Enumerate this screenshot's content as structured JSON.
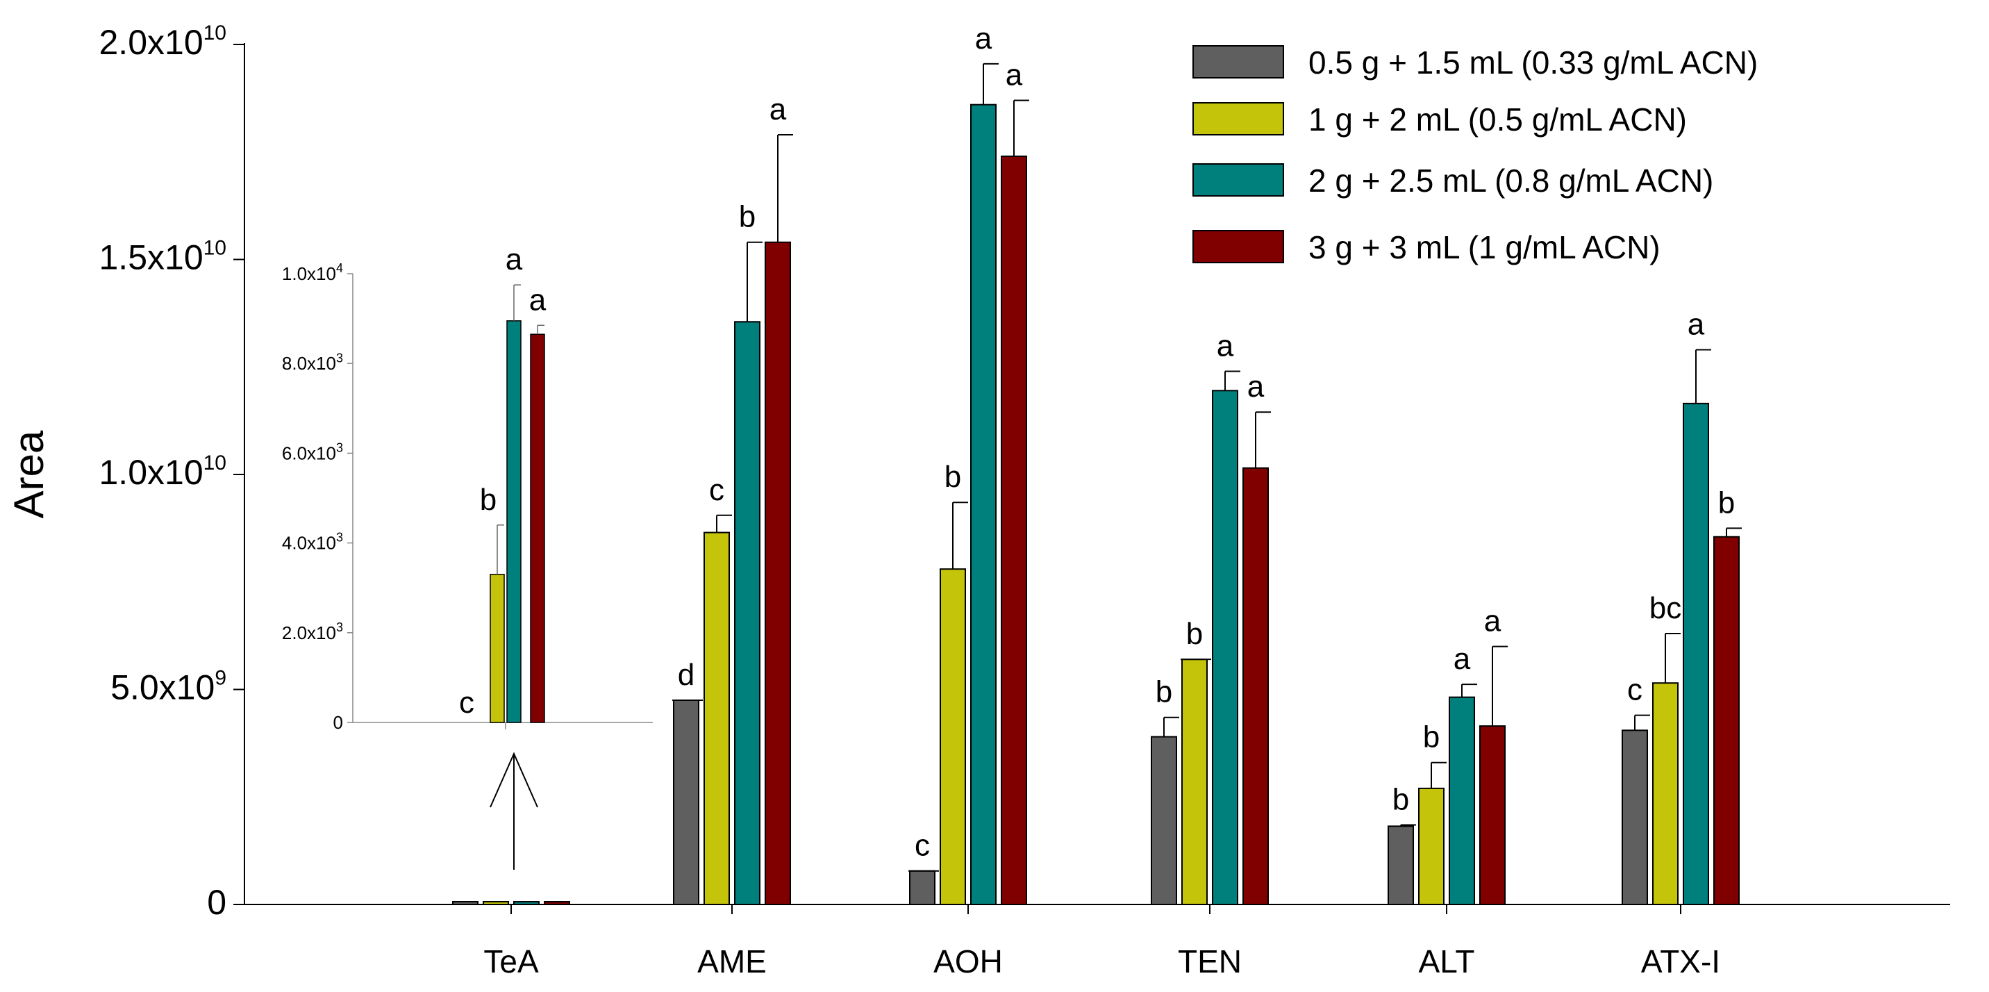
{
  "chart_data": {
    "type": "bar",
    "ylabel": "Area",
    "xlabel": "",
    "ylim": [
      0,
      20000000000
    ],
    "y_ticks": [
      {
        "value": 0,
        "base": "0",
        "exp": ""
      },
      {
        "value": 5000000000,
        "base": "5.0x10",
        "exp": "9"
      },
      {
        "value": 10000000000,
        "base": "1.0x10",
        "exp": "10"
      },
      {
        "value": 15000000000,
        "base": "1.5x10",
        "exp": "10"
      },
      {
        "value": 20000000000,
        "base": "2.0x10",
        "exp": "10"
      }
    ],
    "categories": [
      "TeA",
      "AME",
      "AOH",
      "TEN",
      "ALT",
      "ATX-I"
    ],
    "series": [
      {
        "name": "0.5 g + 1.5 mL (0.33 g/mL ACN)",
        "color": "#5f5f5f",
        "values": [
          0,
          4750000000,
          780000000,
          3900000000,
          1820000000,
          4050000000
        ],
        "errors": [
          0,
          0,
          0,
          450000000,
          30000000,
          350000000
        ],
        "letters": [
          "c",
          "d",
          "c",
          "b",
          "b",
          "c"
        ]
      },
      {
        "name": "1 g + 2 mL (0.5 g/mL ACN)",
        "color": "#c4c40b",
        "values": [
          3300,
          8650000000,
          7800000000,
          5700000000,
          2700000000,
          5150000000
        ],
        "errors": [
          1100,
          400000000,
          1550000000,
          0,
          600000000,
          1150000000
        ],
        "letters": [
          "b",
          "c",
          "b",
          "b",
          "b",
          "bc"
        ]
      },
      {
        "name": "2 g + 2.5 mL (0.8 g/mL ACN)",
        "color": "#00807c",
        "values": [
          8950,
          13550000000,
          18600000000,
          11950000000,
          4820000000,
          11650000000
        ],
        "errors": [
          800,
          1850000000,
          950000000,
          450000000,
          300000000,
          1250000000
        ],
        "letters": [
          "a",
          "b",
          "a",
          "a",
          "a",
          "a"
        ]
      },
      {
        "name": "3 g + 3 mL (1 g/mL ACN)",
        "color": "#800000",
        "values": [
          8650,
          15400000000,
          17400000000,
          10150000000,
          4150000000,
          8550000000
        ],
        "errors": [
          200,
          2500000000,
          1300000000,
          1300000000,
          1850000000,
          200000000
        ],
        "letters": [
          "a",
          "a",
          "a",
          "a",
          "a",
          "b"
        ]
      }
    ],
    "legend_position": "top-right",
    "inset": {
      "category": "TeA",
      "ylim": [
        0,
        10000
      ],
      "y_ticks": [
        {
          "value": 0,
          "base": "0",
          "exp": ""
        },
        {
          "value": 2000,
          "base": "2.0x10",
          "exp": "3"
        },
        {
          "value": 4000,
          "base": "4.0x10",
          "exp": "3"
        },
        {
          "value": 6000,
          "base": "6.0x10",
          "exp": "3"
        },
        {
          "value": 8000,
          "base": "8.0x10",
          "exp": "3"
        },
        {
          "value": 10000,
          "base": "1.0x10",
          "exp": "4"
        }
      ]
    }
  }
}
